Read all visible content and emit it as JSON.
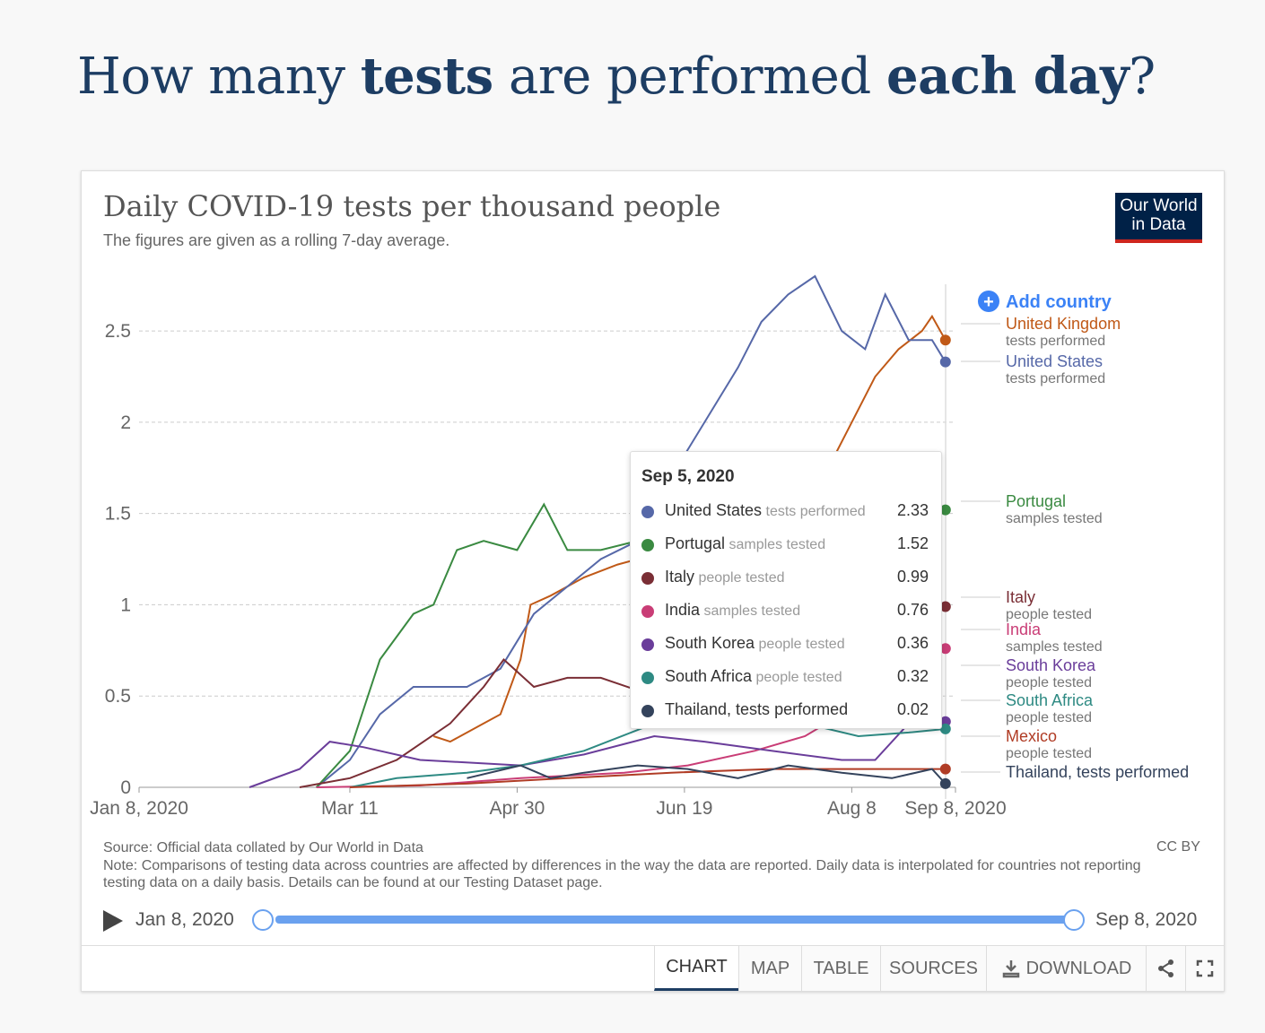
{
  "heading": {
    "part1": "How many ",
    "bold1": "tests",
    "part2": " are performed ",
    "bold2": "each day",
    "part3": "?"
  },
  "card": {
    "title": "Daily COVID-19 tests per thousand people",
    "subtitle": "The figures are given as a rolling 7-day average.",
    "logo_line1": "Our World",
    "logo_line2": "in Data",
    "add_country": "Add country",
    "source": "Source: Official data collated by Our World in Data",
    "note": "Note: Comparisons of testing data across countries are affected by differences in the way the data are reported. Daily data is interpolated for countries not reporting testing data on a daily basis. Details can be found at our Testing Dataset page.",
    "license": "CC BY"
  },
  "timeline": {
    "start": "Jan 8, 2020",
    "end": "Sep 8, 2020"
  },
  "tabs": [
    {
      "label": "CHART",
      "active": true
    },
    {
      "label": "MAP",
      "active": false
    },
    {
      "label": "TABLE",
      "active": false
    },
    {
      "label": "SOURCES",
      "active": false
    },
    {
      "label": "DOWNLOAD",
      "active": false
    }
  ],
  "tooltip": {
    "date": "Sep 5, 2020",
    "rows": [
      {
        "country": "United States",
        "metric": "tests performed",
        "value": "2.33",
        "color": "#5668a8"
      },
      {
        "country": "Portugal",
        "metric": "samples tested",
        "value": "1.52",
        "color": "#3a8a41"
      },
      {
        "country": "Italy",
        "metric": "people tested",
        "value": "0.99",
        "color": "#7a2e35"
      },
      {
        "country": "India",
        "metric": "samples tested",
        "value": "0.76",
        "color": "#c93d76"
      },
      {
        "country": "South Korea",
        "metric": "people tested",
        "value": "0.36",
        "color": "#6a3d9a"
      },
      {
        "country": "South Africa",
        "metric": "people tested",
        "value": "0.32",
        "color": "#2e8a83"
      },
      {
        "country": "Thailand, tests performed",
        "metric": "",
        "value": "0.02",
        "color": "#34435c"
      }
    ]
  },
  "chart_data": {
    "type": "line",
    "title": "Daily COVID-19 tests per thousand people",
    "subtitle": "The figures are given as a rolling 7-day average.",
    "ylim": [
      0,
      2.8
    ],
    "yticks": [
      0,
      0.5,
      1,
      1.5,
      2,
      2.5
    ],
    "ytick_labels": [
      "0",
      "0.5",
      "1",
      "1.5",
      "2",
      "2.5"
    ],
    "xlim": [
      "2020-01-08",
      "2020-09-08"
    ],
    "xticks": [
      "2020-01-08",
      "2020-03-11",
      "2020-04-30",
      "2020-06-19",
      "2020-08-08",
      "2020-09-08"
    ],
    "xtick_labels": [
      "Jan 8, 2020",
      "Mar 11",
      "Apr 30",
      "Jun 19",
      "Aug 8",
      "Sep 8, 2020"
    ],
    "grid": true,
    "legend": "right",
    "series": [
      {
        "name": "United Kingdom",
        "metric": "tests performed",
        "color": "#c05917",
        "x": [
          "2020-04-05",
          "2020-04-10",
          "2020-04-20",
          "2020-04-25",
          "2020-05-01",
          "2020-05-04",
          "2020-05-10",
          "2020-05-20",
          "2020-05-30",
          "2020-06-05",
          "2020-06-15",
          "2020-06-25",
          "2020-07-05",
          "2020-07-15",
          "2020-07-25",
          "2020-08-01",
          "2020-08-08",
          "2020-08-15",
          "2020-08-22",
          "2020-08-29",
          "2020-09-01",
          "2020-09-05"
        ],
        "y": [
          0.28,
          0.25,
          0.35,
          0.4,
          0.7,
          1.0,
          1.05,
          1.15,
          1.22,
          1.25,
          1.2,
          1.35,
          1.45,
          1.5,
          1.6,
          1.75,
          2.0,
          2.25,
          2.4,
          2.5,
          2.58,
          2.45
        ]
      },
      {
        "name": "United States",
        "metric": "tests performed",
        "color": "#5668a8",
        "x": [
          "2020-03-01",
          "2020-03-11",
          "2020-03-20",
          "2020-03-30",
          "2020-04-05",
          "2020-04-15",
          "2020-04-25",
          "2020-05-05",
          "2020-05-15",
          "2020-05-25",
          "2020-06-05",
          "2020-06-15",
          "2020-06-25",
          "2020-07-05",
          "2020-07-12",
          "2020-07-20",
          "2020-07-28",
          "2020-08-05",
          "2020-08-12",
          "2020-08-18",
          "2020-08-25",
          "2020-09-01",
          "2020-09-05"
        ],
        "y": [
          0,
          0.15,
          0.4,
          0.55,
          0.55,
          0.55,
          0.65,
          0.95,
          1.1,
          1.25,
          1.35,
          1.7,
          2.0,
          2.3,
          2.55,
          2.7,
          2.8,
          2.5,
          2.4,
          2.7,
          2.45,
          2.45,
          2.33
        ]
      },
      {
        "name": "Portugal",
        "metric": "samples tested",
        "color": "#3a8a41",
        "x": [
          "2020-03-01",
          "2020-03-11",
          "2020-03-20",
          "2020-03-30",
          "2020-04-05",
          "2020-04-12",
          "2020-04-20",
          "2020-04-30",
          "2020-05-08",
          "2020-05-15",
          "2020-05-25",
          "2020-06-05",
          "2020-06-20",
          "2020-07-05",
          "2020-07-20",
          "2020-08-05",
          "2020-08-20",
          "2020-09-05"
        ],
        "y": [
          0,
          0.2,
          0.7,
          0.95,
          1.0,
          1.3,
          1.35,
          1.3,
          1.55,
          1.3,
          1.3,
          1.35,
          1.3,
          1.35,
          1.3,
          1.3,
          1.4,
          1.52
        ]
      },
      {
        "name": "Italy",
        "metric": "people tested",
        "color": "#7a2e35",
        "x": [
          "2020-02-25",
          "2020-03-11",
          "2020-03-25",
          "2020-04-10",
          "2020-04-20",
          "2020-04-26",
          "2020-05-05",
          "2020-05-15",
          "2020-05-25",
          "2020-06-10",
          "2020-06-25",
          "2020-07-10",
          "2020-07-25",
          "2020-08-10",
          "2020-08-25",
          "2020-09-05"
        ],
        "y": [
          0,
          0.05,
          0.15,
          0.35,
          0.55,
          0.7,
          0.55,
          0.6,
          0.6,
          0.5,
          0.45,
          0.45,
          0.5,
          0.6,
          0.85,
          0.99
        ]
      },
      {
        "name": "India",
        "metric": "samples tested",
        "color": "#c93d76",
        "x": [
          "2020-03-01",
          "2020-04-01",
          "2020-05-01",
          "2020-06-01",
          "2020-06-20",
          "2020-07-10",
          "2020-07-25",
          "2020-08-05",
          "2020-08-20",
          "2020-09-05"
        ],
        "y": [
          0,
          0.01,
          0.05,
          0.08,
          0.12,
          0.2,
          0.28,
          0.4,
          0.6,
          0.76
        ]
      },
      {
        "name": "South Korea",
        "metric": "people tested",
        "color": "#6a3d9a",
        "x": [
          "2020-02-10",
          "2020-02-25",
          "2020-03-05",
          "2020-03-15",
          "2020-04-01",
          "2020-05-01",
          "2020-05-20",
          "2020-06-10",
          "2020-06-25",
          "2020-07-15",
          "2020-08-05",
          "2020-08-15",
          "2020-08-25",
          "2020-09-05"
        ],
        "y": [
          0,
          0.1,
          0.25,
          0.22,
          0.15,
          0.12,
          0.18,
          0.28,
          0.25,
          0.2,
          0.15,
          0.15,
          0.35,
          0.36
        ]
      },
      {
        "name": "South Africa",
        "metric": "people tested",
        "color": "#2e8a83",
        "x": [
          "2020-03-11",
          "2020-03-25",
          "2020-04-15",
          "2020-05-01",
          "2020-05-20",
          "2020-06-10",
          "2020-06-25",
          "2020-07-10",
          "2020-07-25",
          "2020-08-10",
          "2020-08-25",
          "2020-09-05"
        ],
        "y": [
          0,
          0.05,
          0.08,
          0.12,
          0.2,
          0.35,
          0.4,
          0.38,
          0.35,
          0.28,
          0.3,
          0.32
        ]
      },
      {
        "name": "Mexico",
        "metric": "people tested",
        "color": "#b03c25",
        "x": [
          "2020-03-11",
          "2020-04-15",
          "2020-05-15",
          "2020-06-15",
          "2020-07-15",
          "2020-08-15",
          "2020-09-05"
        ],
        "y": [
          0,
          0.02,
          0.05,
          0.08,
          0.1,
          0.1,
          0.1
        ]
      },
      {
        "name": "Thailand, tests performed",
        "metric": "",
        "color": "#34435c",
        "x": [
          "2020-04-15",
          "2020-05-01",
          "2020-05-10",
          "2020-05-20",
          "2020-06-05",
          "2020-06-20",
          "2020-07-05",
          "2020-07-20",
          "2020-08-05",
          "2020-08-20",
          "2020-09-01",
          "2020-09-05"
        ],
        "y": [
          0.05,
          0.12,
          0.05,
          0.08,
          0.12,
          0.1,
          0.05,
          0.12,
          0.08,
          0.05,
          0.1,
          0.02
        ]
      }
    ]
  }
}
